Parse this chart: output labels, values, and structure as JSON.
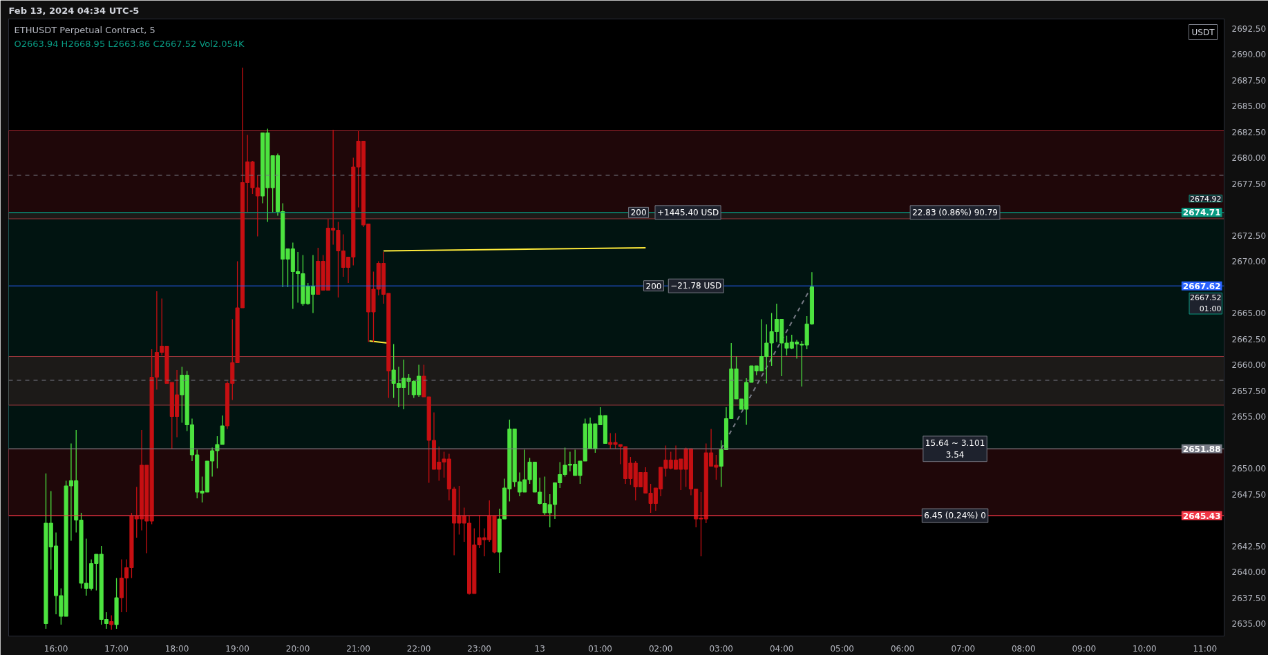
{
  "chart_data": {
    "type": "candlestick",
    "title": "ETHUSDT Perpetual Contract, 5",
    "subtitle": "O2663.94 H2668.95 L2663.86 C2667.52 Vol2.054K",
    "annotations": [
      "Feb 13, 2024 04:34 UTC-5",
      "USDT",
      {
        "text": "22.83 (0.86%) 90.79",
        "x": "2024-02-13T06:52",
        "y": 2674.71
      },
      {
        "text": "15.64 ~ 3.101\n3.54",
        "x": "2024-02-13T06:52",
        "y": 2651.88
      },
      {
        "text": "6.45 (0.24%) 0",
        "x": "2024-02-13T06:52",
        "y": 2645.43
      },
      {
        "text": "200",
        "x": "2024-02-13T01:38",
        "y": 2674.71
      },
      {
        "text": "+1445.40 USD",
        "x": "2024-02-13T02:27",
        "y": 2674.71
      },
      {
        "text": "200",
        "x": "2024-02-13T01:53",
        "y": 2667.62
      },
      {
        "text": "−21.78 USD",
        "x": "2024-02-13T02:35",
        "y": 2667.62
      },
      {
        "text": "2674.92",
        "y": 2674.92
      },
      {
        "text": "2667.52\n01:00",
        "y": 2667.52
      }
    ],
    "x": [
      "2024-02-12T15:50",
      "2024-02-12T15:55",
      "2024-02-12T16:00",
      "2024-02-12T16:05",
      "2024-02-12T16:10",
      "2024-02-12T16:15",
      "2024-02-12T16:20",
      "2024-02-12T16:25",
      "2024-02-12T16:30",
      "2024-02-12T16:35",
      "2024-02-12T16:40",
      "2024-02-12T16:45",
      "2024-02-12T16:50",
      "2024-02-12T16:55",
      "2024-02-12T17:00",
      "2024-02-12T17:05",
      "2024-02-12T17:10",
      "2024-02-12T17:15",
      "2024-02-12T17:20",
      "2024-02-12T17:25",
      "2024-02-12T17:30",
      "2024-02-12T17:35",
      "2024-02-12T17:40",
      "2024-02-12T17:45",
      "2024-02-12T17:50",
      "2024-02-12T17:55",
      "2024-02-12T18:00",
      "2024-02-12T18:05",
      "2024-02-12T18:10",
      "2024-02-12T18:15",
      "2024-02-12T18:20",
      "2024-02-12T18:25",
      "2024-02-12T18:30",
      "2024-02-12T18:35",
      "2024-02-12T18:40",
      "2024-02-12T18:45",
      "2024-02-12T18:50",
      "2024-02-12T18:55",
      "2024-02-12T19:00",
      "2024-02-12T19:05",
      "2024-02-12T19:10",
      "2024-02-12T19:15",
      "2024-02-12T19:20",
      "2024-02-12T19:25",
      "2024-02-12T19:30",
      "2024-02-12T19:35",
      "2024-02-12T19:40",
      "2024-02-12T19:45",
      "2024-02-12T19:50",
      "2024-02-12T19:55",
      "2024-02-12T20:00",
      "2024-02-12T20:05",
      "2024-02-12T20:10",
      "2024-02-12T20:15",
      "2024-02-12T20:20",
      "2024-02-12T20:25",
      "2024-02-12T20:30",
      "2024-02-12T20:35",
      "2024-02-12T20:40",
      "2024-02-12T20:45",
      "2024-02-12T20:50",
      "2024-02-12T20:55",
      "2024-02-12T21:00",
      "2024-02-12T21:05",
      "2024-02-12T21:10",
      "2024-02-12T21:15",
      "2024-02-12T21:20",
      "2024-02-12T21:25",
      "2024-02-12T21:30",
      "2024-02-12T21:35",
      "2024-02-12T21:40",
      "2024-02-12T21:45",
      "2024-02-12T21:50",
      "2024-02-12T21:55",
      "2024-02-12T22:00",
      "2024-02-12T22:05",
      "2024-02-12T22:10",
      "2024-02-12T22:15",
      "2024-02-12T22:20",
      "2024-02-12T22:25",
      "2024-02-12T22:30",
      "2024-02-12T22:35",
      "2024-02-12T22:40",
      "2024-02-12T22:45",
      "2024-02-12T22:50",
      "2024-02-12T22:55",
      "2024-02-12T23:00",
      "2024-02-12T23:05",
      "2024-02-12T23:10",
      "2024-02-12T23:15",
      "2024-02-12T23:20",
      "2024-02-12T23:25",
      "2024-02-12T23:30",
      "2024-02-12T23:35",
      "2024-02-12T23:40",
      "2024-02-12T23:45",
      "2024-02-12T23:50",
      "2024-02-12T23:55",
      "2024-02-13T00:00",
      "2024-02-13T00:05",
      "2024-02-13T00:10",
      "2024-02-13T00:15",
      "2024-02-13T00:20",
      "2024-02-13T00:25",
      "2024-02-13T00:30",
      "2024-02-13T00:35",
      "2024-02-13T00:40",
      "2024-02-13T00:45",
      "2024-02-13T00:50",
      "2024-02-13T00:55",
      "2024-02-13T01:00",
      "2024-02-13T01:05",
      "2024-02-13T01:10",
      "2024-02-13T01:15",
      "2024-02-13T01:20",
      "2024-02-13T01:25",
      "2024-02-13T01:30",
      "2024-02-13T01:35",
      "2024-02-13T01:40",
      "2024-02-13T01:45",
      "2024-02-13T01:50",
      "2024-02-13T01:55",
      "2024-02-13T02:00",
      "2024-02-13T02:05",
      "2024-02-13T02:10",
      "2024-02-13T02:15",
      "2024-02-13T02:20",
      "2024-02-13T02:25",
      "2024-02-13T02:30",
      "2024-02-13T02:35",
      "2024-02-13T02:40",
      "2024-02-13T02:45",
      "2024-02-13T02:50",
      "2024-02-13T02:55",
      "2024-02-13T03:00",
      "2024-02-13T03:05",
      "2024-02-13T03:10",
      "2024-02-13T03:15",
      "2024-02-13T03:20",
      "2024-02-13T03:25",
      "2024-02-13T03:30",
      "2024-02-13T03:35",
      "2024-02-13T03:40",
      "2024-02-13T03:45",
      "2024-02-13T03:50",
      "2024-02-13T03:55",
      "2024-02-13T04:00",
      "2024-02-13T04:05",
      "2024-02-13T04:10",
      "2024-02-13T04:15",
      "2024-02-13T04:20",
      "2024-02-13T04:25",
      "2024-02-13T04:30"
    ],
    "ohlc": [
      [
        2635.0,
        2649.5,
        2634.5,
        2644.7
      ],
      [
        2642.4,
        2647.8,
        2640.2,
        2644.7
      ],
      [
        2637.7,
        2643.8,
        2635.9,
        2642.5
      ],
      [
        2635.7,
        2638.4,
        2634.9,
        2637.7
      ],
      [
        2635.7,
        2648.8,
        2635.7,
        2648.3
      ],
      [
        2648.3,
        2652.4,
        2643.0,
        2648.8
      ],
      [
        2645.0,
        2653.7,
        2643.8,
        2648.8
      ],
      [
        2638.9,
        2645.7,
        2638.4,
        2645.0
      ],
      [
        2638.4,
        2643.2,
        2637.7,
        2638.9
      ],
      [
        2638.4,
        2641.2,
        2638.2,
        2640.8
      ],
      [
        2640.8,
        2641.7,
        2638.2,
        2641.7
      ],
      [
        2635.4,
        2642.5,
        2634.9,
        2641.7
      ],
      [
        2635.0,
        2636.1,
        2634.5,
        2635.4
      ],
      [
        2635.2,
        2635.8,
        2634.4,
        2634.9
      ],
      [
        2634.9,
        2639.4,
        2634.5,
        2637.5
      ],
      [
        2639.4,
        2641.2,
        2636.1,
        2637.5
      ],
      [
        2640.4,
        2641.2,
        2636.1,
        2639.4
      ],
      [
        2645.4,
        2645.7,
        2639.4,
        2640.4
      ],
      [
        2645.4,
        2648.2,
        2643.3,
        2645.1
      ],
      [
        2650.3,
        2653.7,
        2644.0,
        2645.1
      ],
      [
        2650.3,
        2650.3,
        2641.8,
        2644.9
      ],
      [
        2658.8,
        2661.5,
        2644.6,
        2644.9
      ],
      [
        2661.2,
        2667.1,
        2657.6,
        2658.8
      ],
      [
        2661.8,
        2666.4,
        2660.9,
        2661.2
      ],
      [
        2661.8,
        2661.8,
        2658.2,
        2658.2
      ],
      [
        2658.3,
        2658.3,
        2651.9,
        2655.0
      ],
      [
        2657.1,
        2659.5,
        2653.0,
        2655.0
      ],
      [
        2657.1,
        2659.8,
        2654.4,
        2659.0
      ],
      [
        2654.2,
        2659.4,
        2653.6,
        2659.0
      ],
      [
        2651.3,
        2654.8,
        2650.7,
        2654.2
      ],
      [
        2647.7,
        2651.8,
        2647.1,
        2651.3
      ],
      [
        2647.6,
        2649.2,
        2646.7,
        2647.8
      ],
      [
        2647.7,
        2650.7,
        2647.7,
        2650.7
      ],
      [
        2650.7,
        2652.0,
        2649.2,
        2651.7
      ],
      [
        2651.7,
        2653.1,
        2650.0,
        2652.3
      ],
      [
        2652.3,
        2655.1,
        2652.3,
        2654.1
      ],
      [
        2658.2,
        2658.4,
        2653.8,
        2654.1
      ],
      [
        2660.2,
        2664.4,
        2656.6,
        2658.2
      ],
      [
        2665.5,
        2670.0,
        2660.2,
        2660.2
      ],
      [
        2677.6,
        2688.7,
        2665.5,
        2665.5
      ],
      [
        2679.6,
        2682.2,
        2674.7,
        2677.6
      ],
      [
        2679.6,
        2679.7,
        2676.5,
        2677.1
      ],
      [
        2677.1,
        2678.3,
        2672.4,
        2676.3
      ],
      [
        2676.3,
        2682.4,
        2675.6,
        2682.4
      ],
      [
        2677.1,
        2682.8,
        2673.8,
        2682.4
      ],
      [
        2677.1,
        2680.2,
        2674.7,
        2680.2
      ],
      [
        2674.8,
        2680.4,
        2674.4,
        2680.2
      ],
      [
        2670.2,
        2675.6,
        2667.5,
        2674.8
      ],
      [
        2670.2,
        2671.2,
        2667.5,
        2671.2
      ],
      [
        2669.0,
        2671.8,
        2665.4,
        2671.2
      ],
      [
        2668.8,
        2670.9,
        2666.0,
        2669.0
      ],
      [
        2665.9,
        2670.6,
        2665.7,
        2668.8
      ],
      [
        2665.9,
        2667.9,
        2665.8,
        2667.6
      ],
      [
        2666.8,
        2670.6,
        2665.0,
        2667.6
      ],
      [
        2670.0,
        2671.3,
        2666.8,
        2666.8
      ],
      [
        2670.0,
        2670.6,
        2667.2,
        2667.2
      ],
      [
        2673.2,
        2674.1,
        2667.2,
        2667.2
      ],
      [
        2673.2,
        2682.7,
        2671.6,
        2673.0
      ],
      [
        2673.0,
        2673.8,
        2666.5,
        2671.0
      ],
      [
        2671.0,
        2672.6,
        2668.5,
        2669.4
      ],
      [
        2670.4,
        2670.4,
        2667.9,
        2669.4
      ],
      [
        2679.1,
        2680.0,
        2669.6,
        2670.4
      ],
      [
        2681.6,
        2682.6,
        2675.2,
        2679.1
      ],
      [
        2681.6,
        2681.6,
        2673.3,
        2673.5
      ],
      [
        2673.6,
        2673.6,
        2662.2,
        2665.1
      ],
      [
        2667.3,
        2669.0,
        2662.2,
        2665.1
      ],
      [
        2669.8,
        2670.0,
        2666.7,
        2667.3
      ],
      [
        2669.8,
        2670.9,
        2665.9,
        2666.8
      ],
      [
        2666.9,
        2666.9,
        2656.8,
        2659.4
      ],
      [
        2658.2,
        2662.0,
        2656.8,
        2659.5
      ],
      [
        2657.8,
        2659.8,
        2655.9,
        2658.2
      ],
      [
        2657.8,
        2660.5,
        2655.7,
        2658.7
      ],
      [
        2658.4,
        2659.1,
        2657.1,
        2658.7
      ],
      [
        2657.1,
        2658.5,
        2656.8,
        2658.4
      ],
      [
        2657.1,
        2660.0,
        2656.9,
        2658.9
      ],
      [
        2658.9,
        2660.0,
        2656.9,
        2656.9
      ],
      [
        2656.9,
        2656.9,
        2648.6,
        2652.7
      ],
      [
        2652.7,
        2655.4,
        2649.9,
        2649.9
      ],
      [
        2650.6,
        2652.1,
        2648.8,
        2649.9
      ],
      [
        2650.9,
        2651.6,
        2649.1,
        2650.6
      ],
      [
        2650.9,
        2651.4,
        2646.9,
        2648.0
      ],
      [
        2648.0,
        2648.2,
        2641.6,
        2644.7
      ],
      [
        2645.4,
        2648.3,
        2643.6,
        2644.7
      ],
      [
        2645.4,
        2646.2,
        2642.9,
        2644.7
      ],
      [
        2644.7,
        2645.4,
        2637.8,
        2637.9
      ],
      [
        2642.6,
        2644.2,
        2637.9,
        2637.9
      ],
      [
        2643.3,
        2645.5,
        2642.3,
        2642.6
      ],
      [
        2643.3,
        2644.2,
        2641.5,
        2643.1
      ],
      [
        2645.4,
        2646.9,
        2642.9,
        2643.1
      ],
      [
        2645.4,
        2645.4,
        2641.8,
        2641.9
      ],
      [
        2641.9,
        2646.1,
        2639.9,
        2645.1
      ],
      [
        2645.1,
        2649.0,
        2645.1,
        2648.1
      ],
      [
        2648.0,
        2654.7,
        2646.8,
        2653.8
      ],
      [
        2648.7,
        2653.8,
        2648.2,
        2653.8
      ],
      [
        2647.7,
        2649.6,
        2647.3,
        2648.7
      ],
      [
        2647.7,
        2651.8,
        2647.7,
        2648.9
      ],
      [
        2648.9,
        2651.0,
        2648.5,
        2650.6
      ],
      [
        2647.7,
        2650.6,
        2647.7,
        2650.6
      ],
      [
        2646.6,
        2649.1,
        2646.5,
        2647.7
      ],
      [
        2645.7,
        2649.2,
        2645.5,
        2646.6
      ],
      [
        2645.7,
        2647.5,
        2644.3,
        2646.5
      ],
      [
        2646.5,
        2648.6,
        2645.1,
        2648.6
      ],
      [
        2648.6,
        2650.6,
        2648.1,
        2649.4
      ],
      [
        2649.4,
        2652.0,
        2649.2,
        2650.3
      ],
      [
        2650.3,
        2651.6,
        2649.7,
        2650.4
      ],
      [
        2649.3,
        2651.8,
        2649.3,
        2650.4
      ],
      [
        2649.3,
        2650.7,
        2648.5,
        2650.7
      ],
      [
        2650.7,
        2654.8,
        2650.7,
        2654.3
      ],
      [
        2651.9,
        2654.9,
        2651.9,
        2654.3
      ],
      [
        2651.9,
        2654.3,
        2651.5,
        2654.3
      ],
      [
        2654.2,
        2655.9,
        2654.2,
        2655.1
      ],
      [
        2652.4,
        2655.1,
        2652.4,
        2655.1
      ],
      [
        2652.5,
        2653.4,
        2651.9,
        2652.3
      ],
      [
        2652.5,
        2653.4,
        2651.9,
        2652.3
      ],
      [
        2652.3,
        2652.3,
        2650.4,
        2652.1
      ],
      [
        2652.1,
        2652.1,
        2648.5,
        2649.0
      ],
      [
        2650.5,
        2651.1,
        2648.4,
        2649.0
      ],
      [
        2650.5,
        2650.7,
        2646.9,
        2648.2
      ],
      [
        2649.6,
        2649.6,
        2648.2,
        2648.2
      ],
      [
        2649.6,
        2650.1,
        2647.6,
        2647.6
      ],
      [
        2647.6,
        2648.5,
        2645.7,
        2646.6
      ],
      [
        2648.1,
        2648.1,
        2645.9,
        2646.6
      ],
      [
        2650.1,
        2650.1,
        2647.3,
        2648.0
      ],
      [
        2650.8,
        2652.2,
        2649.2,
        2650.0
      ],
      [
        2650.8,
        2651.6,
        2649.9,
        2650.0
      ],
      [
        2650.8,
        2652.2,
        2649.9,
        2649.9
      ],
      [
        2650.9,
        2650.9,
        2647.9,
        2649.9
      ],
      [
        2651.9,
        2652.0,
        2648.2,
        2649.9
      ],
      [
        2651.9,
        2651.9,
        2647.4,
        2648.0
      ],
      [
        2648.0,
        2648.0,
        2644.3,
        2645.1
      ],
      [
        2645.2,
        2647.7,
        2641.5,
        2645.1
      ],
      [
        2651.5,
        2652.4,
        2644.7,
        2645.1
      ],
      [
        2651.5,
        2653.8,
        2650.2,
        2650.2
      ],
      [
        2650.3,
        2651.3,
        2648.9,
        2650.1
      ],
      [
        2650.2,
        2652.7,
        2648.2,
        2651.8
      ],
      [
        2651.8,
        2655.9,
        2651.8,
        2654.8
      ],
      [
        2654.8,
        2662.1,
        2654.8,
        2659.6
      ],
      [
        2656.7,
        2660.8,
        2656.7,
        2659.6
      ],
      [
        2655.7,
        2656.7,
        2655.7,
        2656.7
      ],
      [
        2655.7,
        2658.7,
        2654.2,
        2658.3
      ],
      [
        2658.3,
        2659.9,
        2658.3,
        2659.9
      ],
      [
        2659.4,
        2659.9,
        2659.0,
        2659.9
      ],
      [
        2659.4,
        2664.4,
        2659.4,
        2660.8
      ],
      [
        2660.8,
        2663.9,
        2658.2,
        2662.1
      ],
      [
        2662.1,
        2665.0,
        2659.9,
        2663.2
      ],
      [
        2663.2,
        2665.9,
        2662.2,
        2664.4
      ],
      [
        2662.1,
        2664.4,
        2658.9,
        2664.4
      ],
      [
        2661.6,
        2662.8,
        2660.9,
        2662.1
      ],
      [
        2661.6,
        2662.9,
        2661.5,
        2662.2
      ],
      [
        2662.0,
        2662.4,
        2660.6,
        2662.2
      ],
      [
        2661.9,
        2662.3,
        2657.9,
        2662.0
      ],
      [
        2661.9,
        2664.7,
        2661.5,
        2663.94
      ],
      [
        2663.94,
        2668.95,
        2663.86,
        2667.52
      ]
    ],
    "series": [
      {
        "type": "line",
        "color": "#ffeb3b",
        "x": [
          "2024-02-12T21:25",
          "2024-02-13T01:45"
        ],
        "values": [
          2671.0,
          2671.3
        ]
      },
      {
        "type": "line",
        "color": "#ffeb3b",
        "x": [
          "2024-02-12T21:11",
          "2024-02-12T21:29"
        ],
        "values": [
          2662.3,
          2662.1
        ]
      },
      {
        "type": "line",
        "color": "#787b86",
        "line_style": "dashed",
        "x": [
          "2024-02-13T03:00",
          "2024-02-13T04:30"
        ],
        "values": [
          2651.88,
          2667.62
        ]
      }
    ],
    "ref_lines": [
      {
        "axis": "y",
        "value": 2674.71,
        "label": "2674.71",
        "color": "#089981"
      },
      {
        "axis": "y",
        "value": 2667.62,
        "label": "2667.62",
        "color": "#2962ff"
      },
      {
        "axis": "y",
        "value": 2651.88,
        "label": "2651.88",
        "color": "#787b86"
      },
      {
        "axis": "y",
        "value": 2645.43,
        "label": "2645.43",
        "color": "#f23645"
      },
      {
        "axis": "y",
        "value": 2678.3,
        "label": null,
        "color": "#787b86",
        "line_style": "dashed"
      },
      {
        "axis": "y",
        "value": 2658.5,
        "label": null,
        "color": "#787b86",
        "line_style": "dashed"
      }
    ],
    "bands": [
      {
        "axis": "y",
        "from": 2674.1,
        "to": 2682.6,
        "label": null,
        "color": "#f23645"
      },
      {
        "axis": "y",
        "from": 2656.1,
        "to": 2660.8,
        "label": null,
        "color": "#f23645"
      },
      {
        "axis": "y",
        "from": 2651.88,
        "to": 2674.71,
        "label": null,
        "color": "#089981"
      },
      {
        "axis": "y",
        "from": 2645.43,
        "to": 2651.88,
        "label": null,
        "color": "#f23645"
      }
    ],
    "xlim": [
      "2024-02-12T15:13",
      "2024-02-13T11:19"
    ],
    "xticks": [
      {
        "value": "2024-02-12T16:00",
        "label": "16:00"
      },
      {
        "value": "2024-02-12T17:00",
        "label": "17:00"
      },
      {
        "value": "2024-02-12T18:00",
        "label": "18:00"
      },
      {
        "value": "2024-02-12T19:00",
        "label": "19:00"
      },
      {
        "value": "2024-02-12T20:00",
        "label": "20:00"
      },
      {
        "value": "2024-02-12T21:00",
        "label": "21:00"
      },
      {
        "value": "2024-02-12T22:00",
        "label": "22:00"
      },
      {
        "value": "2024-02-12T23:00",
        "label": "23:00"
      },
      {
        "value": "2024-02-13T00:00",
        "label": "13"
      },
      {
        "value": "2024-02-13T01:00",
        "label": "01:00"
      },
      {
        "value": "2024-02-13T02:00",
        "label": "02:00"
      },
      {
        "value": "2024-02-13T03:00",
        "label": "03:00"
      },
      {
        "value": "2024-02-13T04:00",
        "label": "04:00"
      },
      {
        "value": "2024-02-13T05:00",
        "label": "05:00"
      },
      {
        "value": "2024-02-13T06:00",
        "label": "06:00"
      },
      {
        "value": "2024-02-13T07:00",
        "label": "07:00"
      },
      {
        "value": "2024-02-13T08:00",
        "label": "08:00"
      },
      {
        "value": "2024-02-13T09:00",
        "label": "09:00"
      },
      {
        "value": "2024-02-13T10:00",
        "label": "10:00"
      },
      {
        "value": "2024-02-13T11:00",
        "label": "11:00"
      }
    ],
    "ylim": [
      2633.8,
      2693.4
    ],
    "yticks": [
      {
        "value": 2635,
        "label": "2635.00"
      },
      {
        "value": 2637.5,
        "label": "2637.50"
      },
      {
        "value": 2640,
        "label": "2640.00"
      },
      {
        "value": 2642.5,
        "label": "2642.50"
      },
      {
        "value": 2647.5,
        "label": "2647.50"
      },
      {
        "value": 2650,
        "label": "2650.00"
      },
      {
        "value": 2655,
        "label": "2655.00"
      },
      {
        "value": 2657.5,
        "label": "2657.50"
      },
      {
        "value": 2660,
        "label": "2660.00"
      },
      {
        "value": 2662.5,
        "label": "2662.50"
      },
      {
        "value": 2665,
        "label": "2665.00"
      },
      {
        "value": 2670,
        "label": "2670.00"
      },
      {
        "value": 2672.5,
        "label": "2672.50"
      },
      {
        "value": 2677.5,
        "label": "2677.50"
      },
      {
        "value": 2680,
        "label": "2680.00"
      },
      {
        "value": 2682.5,
        "label": "2682.50"
      },
      {
        "value": 2685,
        "label": "2685.00"
      },
      {
        "value": 2687.5,
        "label": "2687.50"
      },
      {
        "value": 2690,
        "label": "2690.00"
      },
      {
        "value": 2692.5,
        "label": "2692.50"
      }
    ],
    "grid": false
  }
}
